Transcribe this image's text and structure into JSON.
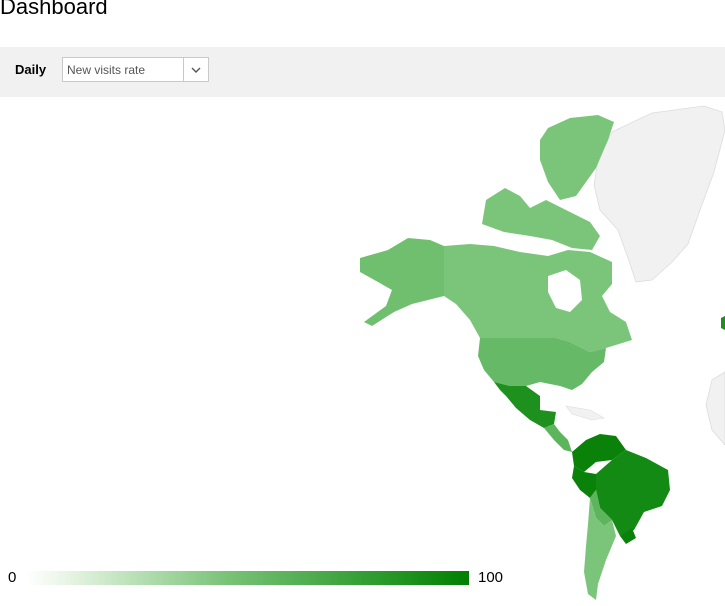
{
  "header": {
    "title": "Dashboard"
  },
  "toolbar": {
    "period_label": "Daily",
    "metric_select": {
      "value": "New visits rate",
      "icon": "chevron-down-icon"
    }
  },
  "map": {
    "region": "Americas",
    "colors": {
      "no_data": "#f1f1f1",
      "light": "#7bc57b",
      "medium": "#5cb55c",
      "dark": "#1e901e",
      "darkest": "#0a820a"
    }
  },
  "legend": {
    "min_label": "0",
    "max_label": "100",
    "colors": [
      "#ffffff",
      "#008000"
    ]
  }
}
